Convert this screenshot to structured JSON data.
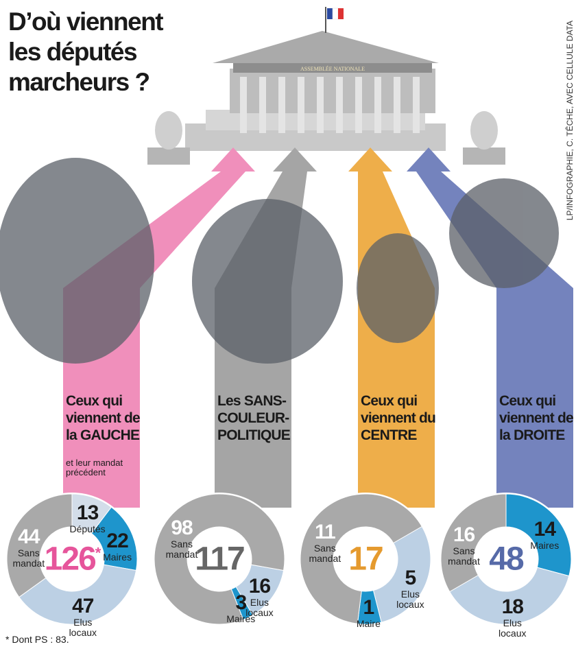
{
  "title": "D’où viennent les députés marcheurs ?",
  "credit": "LP/INFOGRAPHIE, C. TÊCHE, AVEC CELLULE DATA",
  "building_label": "ASSEMBLÉE NATIONALE",
  "footnote": "* Dont PS : 83.",
  "chart_data": [
    {
      "type": "pie",
      "title": "Ceux qui viennent de la GAUCHE",
      "subtitle": "et leur mandat précédent",
      "banner_color": "#f08fbb",
      "total": 126,
      "total_note": "*",
      "total_color": "#e6559b",
      "categories": [
        "Députés",
        "Maires",
        "Elus locaux",
        "Sans mandat"
      ],
      "values": [
        13,
        22,
        47,
        44
      ],
      "colors": [
        "#d3dde9",
        "#1e95cc",
        "#bcd0e4",
        "#a9a9a9"
      ]
    },
    {
      "type": "pie",
      "title": "Les SANS-COULEUR-POLITIQUE",
      "banner_color": "#a5a5a5",
      "total": 117,
      "total_color": "#666666",
      "categories": [
        "Elus locaux",
        "Maires",
        "Sans mandat"
      ],
      "values": [
        16,
        3,
        98
      ],
      "colors": [
        "#bcd0e4",
        "#1e95cc",
        "#a9a9a9"
      ]
    },
    {
      "type": "pie",
      "title": "Ceux qui viennent du CENTRE",
      "banner_color": "#eeae4a",
      "total": 17,
      "total_color": "#e59a2e",
      "categories": [
        "Elus locaux",
        "Maire",
        "Sans mandat"
      ],
      "values": [
        5,
        1,
        11
      ],
      "colors": [
        "#bcd0e4",
        "#1e95cc",
        "#a9a9a9"
      ]
    },
    {
      "type": "pie",
      "title": "Ceux qui viennent de la DROITE",
      "banner_color": "#7483bd",
      "total": 48,
      "total_color": "#566aa8",
      "categories": [
        "Maires",
        "Elus locaux",
        "Sans mandat"
      ],
      "values": [
        14,
        18,
        16
      ],
      "colors": [
        "#1e95cc",
        "#bcd0e4",
        "#a9a9a9"
      ]
    }
  ]
}
